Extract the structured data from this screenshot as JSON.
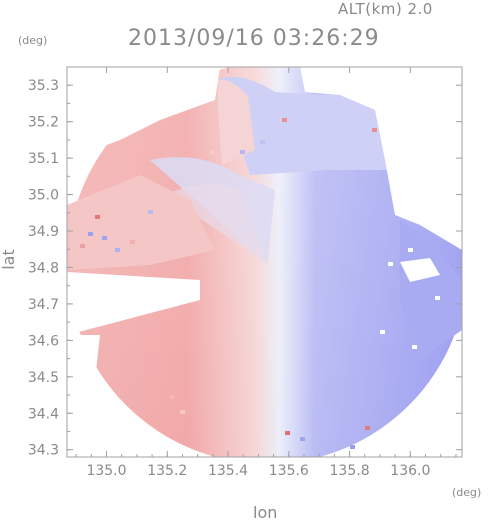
{
  "header": {
    "altitude": "ALT(km) 2.0",
    "datetime": "2013/09/16 03:26:29"
  },
  "chart_data": {
    "type": "heatmap",
    "title": "2013/09/16 03:26:29",
    "subtitle": "ALT(km) 2.0",
    "xlabel": "lon",
    "ylabel": "lat",
    "x_unit": "(deg)",
    "y_unit": "(deg)",
    "xlim": [
      134.87,
      136.17
    ],
    "ylim": [
      34.28,
      35.35
    ],
    "x_ticks": [
      135.0,
      135.2,
      135.4,
      135.6,
      135.8,
      136.0
    ],
    "x_tick_labels": [
      "135.0",
      "135.2",
      "135.4",
      "135.6",
      "135.8",
      "136.0"
    ],
    "y_ticks": [
      34.3,
      34.4,
      34.5,
      34.6,
      34.7,
      34.8,
      34.9,
      35.0,
      35.1,
      35.2,
      35.3
    ],
    "y_tick_labels": [
      "34.3",
      "34.4",
      "34.5",
      "34.6",
      "34.7",
      "34.8",
      "34.9",
      "35.0",
      "35.1",
      "35.2",
      "35.3"
    ],
    "radar_center": {
      "lon": 135.53,
      "lat": 34.81
    },
    "colors": {
      "toward": "#f0a0a0",
      "away": "#9d9ff2",
      "neutral": "#f5f5f8",
      "axis": "#a0a0a0",
      "text": "#8a8a8a"
    },
    "grid": false,
    "legend": "none"
  }
}
